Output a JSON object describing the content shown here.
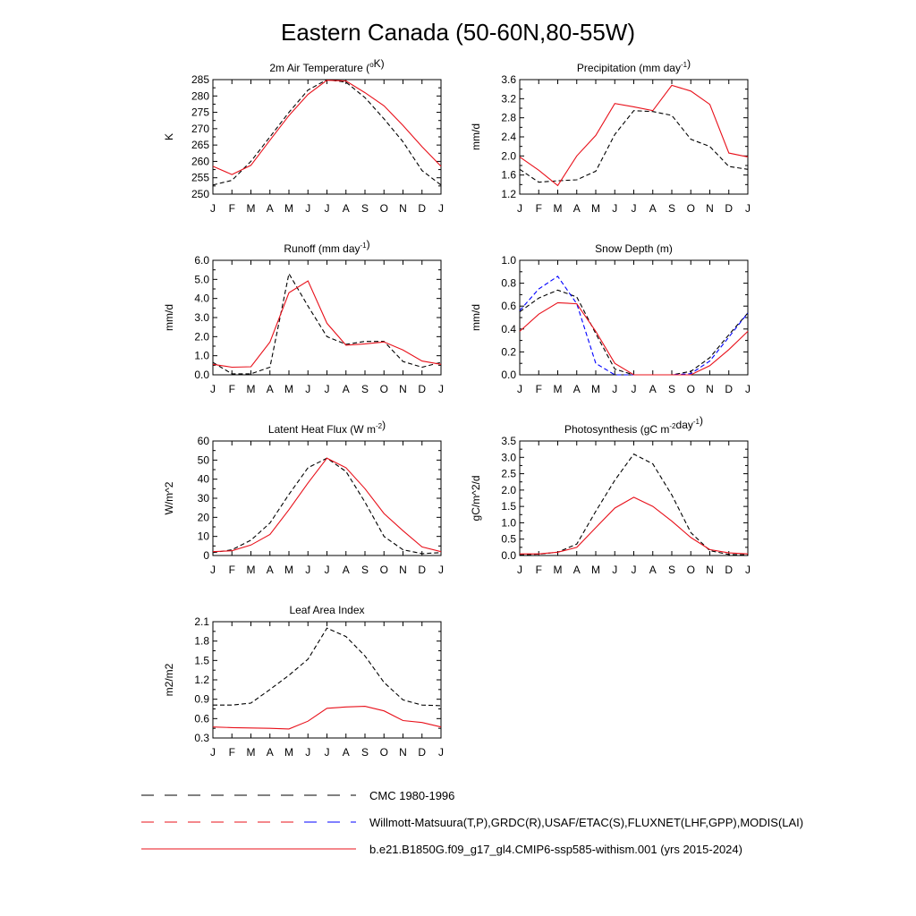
{
  "figure": {
    "title": "Eastern Canada (50-60N,80-55W)"
  },
  "colors": {
    "obs": "#000000",
    "obs_alt": "#0000ff",
    "model": "#e8101a"
  },
  "legend": [
    {
      "label": "CMC 1980-1996",
      "style": "dash",
      "colors": [
        "#000000",
        "#000000"
      ]
    },
    {
      "label": "Willmott-Matsuura(T,P),GRDC(R),USAF/ETAC(S),FLUXNET(LHF,GPP),MODIS(LAI)",
      "style": "dash",
      "colors": [
        "#e8101a",
        "#0000ff"
      ]
    },
    {
      "label": "b.e21.B1850G.f09_g17_gl4.CMIP6-ssp585-withism.001 (yrs 2015-2024)",
      "style": "solid",
      "colors": [
        "#e8101a"
      ]
    }
  ],
  "chart_data": [
    {
      "type": "line",
      "title": "2m Air Temperature (",
      "title_sup": "o",
      "title_after": "K)",
      "ylabel": "K",
      "categories": [
        "J",
        "F",
        "M",
        "A",
        "M",
        "J",
        "J",
        "A",
        "S",
        "O",
        "N",
        "D",
        "J"
      ],
      "ylim": [
        250,
        285
      ],
      "yticks": [
        250,
        255,
        260,
        265,
        270,
        275,
        280,
        285
      ],
      "ytick_labels": [
        "250",
        "255",
        "260",
        "265",
        "270",
        "275",
        "280",
        "285"
      ],
      "series": [
        {
          "role": "obs",
          "style": "dash",
          "color": "#000000",
          "values": [
            252.8,
            254.2,
            260.0,
            267.5,
            275.0,
            281.8,
            285.0,
            284.2,
            279.5,
            273.0,
            266.0,
            257.2,
            252.8
          ]
        },
        {
          "role": "model",
          "style": "solid",
          "color": "#e8101a",
          "values": [
            258.5,
            256.0,
            258.8,
            266.5,
            274.0,
            280.5,
            284.8,
            284.6,
            281.0,
            277.0,
            271.0,
            264.5,
            258.5
          ]
        }
      ]
    },
    {
      "type": "line",
      "title": "Precipitation (mm day",
      "title_sup": "-1",
      "title_after": ")",
      "ylabel": "mm/d",
      "categories": [
        "J",
        "F",
        "M",
        "A",
        "M",
        "J",
        "J",
        "A",
        "S",
        "O",
        "N",
        "D",
        "J"
      ],
      "ylim": [
        1.2,
        3.6
      ],
      "yticks": [
        1.2,
        1.6,
        2.0,
        2.4,
        2.8,
        3.2,
        3.6
      ],
      "ytick_labels": [
        "1.2",
        "1.6",
        "2.0",
        "2.4",
        "2.8",
        "3.2",
        "3.6"
      ],
      "series": [
        {
          "role": "obs",
          "style": "dash",
          "color": "#000000",
          "values": [
            1.72,
            1.45,
            1.48,
            1.5,
            1.68,
            2.45,
            2.95,
            2.93,
            2.85,
            2.35,
            2.2,
            1.78,
            1.72
          ]
        },
        {
          "role": "model",
          "style": "solid",
          "color": "#e8101a",
          "values": [
            1.98,
            1.7,
            1.38,
            2.0,
            2.43,
            3.1,
            3.03,
            2.95,
            3.48,
            3.36,
            3.08,
            2.06,
            1.98
          ]
        }
      ]
    },
    {
      "type": "line",
      "title": "Runoff (mm day",
      "title_sup": "-1",
      "title_after": ")",
      "ylabel": "mm/d",
      "categories": [
        "J",
        "F",
        "M",
        "A",
        "M",
        "J",
        "J",
        "A",
        "S",
        "O",
        "N",
        "D",
        "J"
      ],
      "ylim": [
        0,
        6
      ],
      "yticks": [
        0,
        1,
        2,
        3,
        4,
        5,
        6
      ],
      "ytick_labels": [
        "0.0",
        "1.0",
        "2.0",
        "3.0",
        "4.0",
        "5.0",
        "6.0"
      ],
      "series": [
        {
          "role": "obs",
          "style": "dash",
          "color": "#000000",
          "values": [
            0.65,
            0.05,
            0.05,
            0.4,
            5.3,
            3.6,
            2.0,
            1.6,
            1.75,
            1.75,
            0.7,
            0.4,
            0.65
          ]
        },
        {
          "role": "model",
          "style": "solid",
          "color": "#e8101a",
          "values": [
            0.55,
            0.4,
            0.42,
            1.72,
            4.3,
            4.92,
            2.7,
            1.55,
            1.62,
            1.72,
            1.3,
            0.72,
            0.55
          ]
        }
      ]
    },
    {
      "type": "line",
      "title": "Snow Depth (m)",
      "ylabel": "mm/d",
      "categories": [
        "J",
        "F",
        "M",
        "A",
        "M",
        "J",
        "J",
        "A",
        "S",
        "O",
        "N",
        "D",
        "J"
      ],
      "ylim": [
        0,
        1
      ],
      "yticks": [
        0,
        0.2,
        0.4,
        0.6,
        0.8,
        1.0
      ],
      "ytick_labels": [
        "0.0",
        "0.2",
        "0.4",
        "0.6",
        "0.8",
        "1.0"
      ],
      "series": [
        {
          "role": "obs",
          "style": "dash",
          "color": "#000000",
          "values": [
            0.55,
            0.67,
            0.74,
            0.68,
            0.36,
            0.05,
            0.0,
            0.0,
            0.0,
            0.03,
            0.15,
            0.35,
            0.54
          ]
        },
        {
          "role": "obs_alt",
          "style": "dash",
          "color": "#0000ff",
          "values": [
            0.56,
            0.75,
            0.86,
            0.62,
            0.1,
            0.0,
            0.0,
            0.0,
            0.0,
            0.01,
            0.12,
            0.33,
            0.54
          ]
        },
        {
          "role": "model",
          "style": "solid",
          "color": "#e8101a",
          "values": [
            0.38,
            0.53,
            0.63,
            0.62,
            0.38,
            0.1,
            0.0,
            0.0,
            0.0,
            0.0,
            0.08,
            0.22,
            0.38
          ]
        }
      ]
    },
    {
      "type": "line",
      "title": "Latent Heat Flux (W m",
      "title_sup": "-2",
      "title_after": ")",
      "ylabel": "W/m^2",
      "categories": [
        "J",
        "F",
        "M",
        "A",
        "M",
        "J",
        "J",
        "A",
        "S",
        "O",
        "N",
        "D",
        "J"
      ],
      "ylim": [
        0,
        60
      ],
      "yticks": [
        0,
        10,
        20,
        30,
        40,
        50,
        60
      ],
      "ytick_labels": [
        "0",
        "10",
        "20",
        "30",
        "40",
        "50",
        "60"
      ],
      "series": [
        {
          "role": "obs",
          "style": "dash",
          "color": "#000000",
          "values": [
            1.5,
            3.0,
            8.0,
            17.0,
            32.0,
            46.0,
            51.0,
            44.0,
            28.0,
            10.0,
            3.0,
            1.0,
            1.5
          ]
        },
        {
          "role": "model",
          "style": "solid",
          "color": "#e8101a",
          "values": [
            2.0,
            2.5,
            5.5,
            11.0,
            24.0,
            38.0,
            51.0,
            46.0,
            35.0,
            22.0,
            13.0,
            4.5,
            2.0
          ]
        }
      ]
    },
    {
      "type": "line",
      "title": "Photosynthesis (gC m",
      "title_sup": "-2",
      "title_after": "day",
      "title_sup2": "-1",
      "title_after2": ")",
      "ylabel": "gC/m^2/d",
      "categories": [
        "J",
        "F",
        "M",
        "A",
        "M",
        "J",
        "J",
        "A",
        "S",
        "O",
        "N",
        "D",
        "J"
      ],
      "ylim": [
        0,
        3.5
      ],
      "yticks": [
        0,
        0.5,
        1.0,
        1.5,
        2.0,
        2.5,
        3.0,
        3.5
      ],
      "ytick_labels": [
        "0.0",
        "0.5",
        "1.0",
        "1.5",
        "2.0",
        "2.5",
        "3.0",
        "3.5"
      ],
      "series": [
        {
          "role": "obs",
          "style": "dash",
          "color": "#000000",
          "values": [
            0.02,
            0.04,
            0.1,
            0.35,
            1.35,
            2.3,
            3.1,
            2.8,
            1.85,
            0.7,
            0.15,
            0.03,
            0.02
          ]
        },
        {
          "role": "model",
          "style": "solid",
          "color": "#e8101a",
          "values": [
            0.05,
            0.05,
            0.1,
            0.25,
            0.85,
            1.45,
            1.78,
            1.5,
            1.05,
            0.55,
            0.18,
            0.08,
            0.05
          ]
        }
      ]
    },
    {
      "type": "line",
      "title": "Leaf Area Index",
      "ylabel": "m2/m2",
      "categories": [
        "J",
        "F",
        "M",
        "A",
        "M",
        "J",
        "J",
        "A",
        "S",
        "O",
        "N",
        "D",
        "J"
      ],
      "ylim": [
        0.3,
        2.1
      ],
      "yticks": [
        0.3,
        0.6,
        0.9,
        1.2,
        1.5,
        1.8,
        2.1
      ],
      "ytick_labels": [
        "0.3",
        "0.6",
        "0.9",
        "1.2",
        "1.5",
        "1.8",
        "2.1"
      ],
      "series": [
        {
          "role": "obs",
          "style": "dash",
          "color": "#000000",
          "values": [
            0.81,
            0.81,
            0.84,
            1.05,
            1.27,
            1.52,
            2.0,
            1.87,
            1.57,
            1.16,
            0.89,
            0.81,
            0.8
          ]
        },
        {
          "role": "model",
          "style": "solid",
          "color": "#e8101a",
          "values": [
            0.47,
            0.46,
            0.455,
            0.45,
            0.44,
            0.56,
            0.76,
            0.78,
            0.79,
            0.72,
            0.57,
            0.54,
            0.47
          ]
        }
      ]
    }
  ]
}
